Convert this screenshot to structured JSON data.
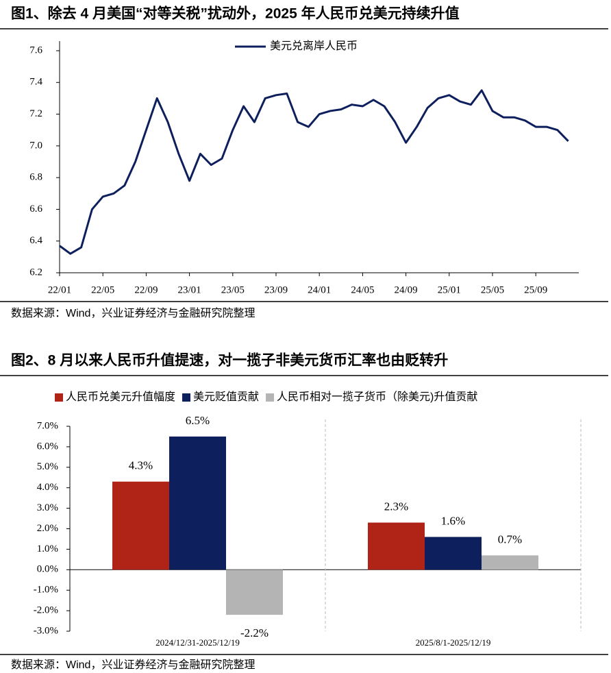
{
  "chart_data": [
    {
      "type": "line",
      "title": "图1、除去 4 月美国“对等关税”扰动外，2025 年人民币兑美元持续升值",
      "source": "数据来源：Wind，兴业证券经济与金融研究院整理",
      "x": [
        "22/01",
        "22/02",
        "22/03",
        "22/04",
        "22/05",
        "22/06",
        "22/07",
        "22/08",
        "22/09",
        "22/10",
        "22/11",
        "22/12",
        "23/01",
        "23/02",
        "23/03",
        "23/04",
        "23/05",
        "23/06",
        "23/07",
        "23/08",
        "23/09",
        "23/10",
        "23/11",
        "23/12",
        "24/01",
        "24/02",
        "24/03",
        "24/04",
        "24/05",
        "24/06",
        "24/07",
        "24/08",
        "24/09",
        "24/10",
        "24/11",
        "24/12",
        "25/01",
        "25/02",
        "25/03",
        "25/04",
        "25/05",
        "25/06",
        "25/07",
        "25/08",
        "25/09",
        "25/10",
        "25/11",
        "25/12"
      ],
      "series": [
        {
          "name": "美元兑离岸人民币",
          "color": "#0d1f5c",
          "values": [
            6.37,
            6.32,
            6.36,
            6.6,
            6.68,
            6.7,
            6.75,
            6.9,
            7.1,
            7.3,
            7.15,
            6.95,
            6.78,
            6.95,
            6.88,
            6.92,
            7.1,
            7.25,
            7.15,
            7.3,
            7.32,
            7.33,
            7.15,
            7.12,
            7.2,
            7.22,
            7.23,
            7.26,
            7.25,
            7.29,
            7.25,
            7.15,
            7.02,
            7.12,
            7.24,
            7.3,
            7.32,
            7.28,
            7.26,
            7.35,
            7.22,
            7.18,
            7.18,
            7.16,
            7.12,
            7.12,
            7.1,
            7.03
          ]
        }
      ],
      "xticks": [
        "22/01",
        "22/05",
        "22/09",
        "23/01",
        "23/05",
        "23/09",
        "24/01",
        "24/05",
        "24/09",
        "25/01",
        "25/05",
        "25/09"
      ],
      "ylim": [
        6.2,
        7.6
      ],
      "yticks": [
        6.2,
        6.4,
        6.6,
        6.8,
        {
          "value": 7,
          "label": "7.0"
        },
        7.2,
        7.4,
        7.6
      ]
    },
    {
      "type": "bar",
      "title": "图2、8 月以来人民币升值提速，对一揽子非美元货币汇率也由贬转升",
      "source": "数据来源：Wind，兴业证券经济与金融研究院整理",
      "categories": [
        "2024/12/31-2025/12/19",
        "2025/8/1-2025/12/19"
      ],
      "series": [
        {
          "name": "人民币兑美元升值幅度",
          "color": "#b02418",
          "values": [
            4.3,
            2.3
          ],
          "value_labels": [
            "4.3%",
            "2.3%"
          ]
        },
        {
          "name": "美元贬值贡献",
          "color": "#0d1f5c",
          "values": [
            6.5,
            1.6
          ],
          "value_labels": [
            "6.5%",
            "1.6%"
          ]
        },
        {
          "name": "人民币相对一揽子货币（除美元)升值贡献",
          "color": "#b4b4b4",
          "values": [
            -2.2,
            0.7
          ],
          "value_labels": [
            "-2.2%",
            "0.7%"
          ]
        }
      ],
      "ylim": [
        -3,
        7
      ],
      "yticks": [
        {
          "value": -3,
          "label": "-3.0%"
        },
        {
          "value": -2,
          "label": "-2.0%"
        },
        {
          "value": -1,
          "label": "-1.0%"
        },
        {
          "value": 0,
          "label": "0.0%"
        },
        {
          "value": 1,
          "label": "1.0%"
        },
        {
          "value": 2,
          "label": "2.0%"
        },
        {
          "value": 3,
          "label": "3.0%"
        },
        {
          "value": 4,
          "label": "4.0%"
        },
        {
          "value": 5,
          "label": "5.0%"
        },
        {
          "value": 6,
          "label": "6.0%"
        },
        {
          "value": 7,
          "label": "7.0%"
        }
      ]
    }
  ]
}
